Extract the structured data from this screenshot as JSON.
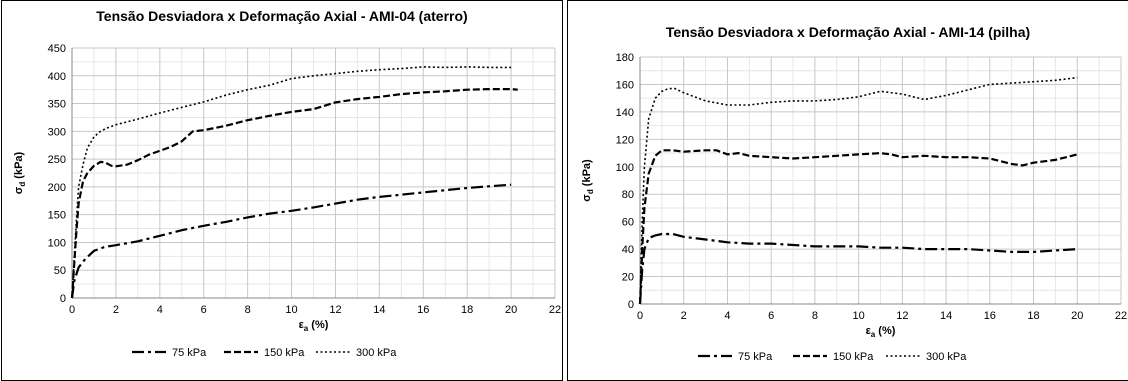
{
  "chart_data": [
    {
      "type": "line",
      "title": "Tensão Desviadora x Deformação Axial - AMI-04 (aterro)",
      "xlabel": "εa (%)",
      "ylabel": "σd (kPa)",
      "xlim": [
        0,
        22
      ],
      "ylim": [
        0,
        450
      ],
      "xticks": [
        0,
        2,
        4,
        6,
        8,
        10,
        12,
        14,
        16,
        18,
        20,
        22
      ],
      "yticks": [
        0,
        50,
        100,
        150,
        200,
        250,
        300,
        350,
        400,
        450
      ],
      "grid": true,
      "legend_position": "bottom",
      "series": [
        {
          "name": "75 kPa",
          "dash": "dashdot",
          "x": [
            0,
            0.1,
            0.3,
            0.6,
            1.0,
            1.5,
            2,
            3,
            4,
            5,
            6,
            7,
            8,
            9,
            10,
            11,
            12,
            13,
            14,
            15,
            16,
            17,
            18,
            19,
            20
          ],
          "y": [
            0,
            30,
            55,
            70,
            85,
            92,
            95,
            102,
            112,
            122,
            130,
            137,
            145,
            152,
            157,
            163,
            170,
            177,
            182,
            186,
            190,
            194,
            198,
            201,
            204
          ]
        },
        {
          "name": "150 kPa",
          "dash": "dash",
          "x": [
            0,
            0.1,
            0.2,
            0.3,
            0.5,
            0.7,
            1.0,
            1.3,
            1.5,
            1.8,
            2,
            2.5,
            3,
            3.5,
            4,
            4.5,
            5,
            5.5,
            6,
            7,
            8,
            9,
            10,
            11,
            12,
            13,
            14,
            15,
            16,
            17,
            18,
            19,
            20,
            20.3
          ],
          "y": [
            0,
            60,
            120,
            170,
            210,
            225,
            238,
            245,
            244,
            238,
            237,
            240,
            248,
            258,
            265,
            272,
            282,
            300,
            302,
            310,
            320,
            328,
            335,
            340,
            352,
            358,
            362,
            367,
            370,
            372,
            375,
            376,
            376,
            375
          ]
        },
        {
          "name": "300 kPa",
          "dash": "dot",
          "x": [
            0,
            0.1,
            0.2,
            0.3,
            0.5,
            0.7,
            1.0,
            1.3,
            1.6,
            2,
            3,
            4,
            5,
            6,
            7,
            8,
            9,
            10,
            11,
            12,
            13,
            14,
            15,
            16,
            17,
            18,
            19,
            20
          ],
          "y": [
            0,
            70,
            140,
            200,
            240,
            270,
            290,
            300,
            306,
            312,
            322,
            333,
            343,
            353,
            365,
            375,
            383,
            395,
            400,
            404,
            408,
            411,
            413,
            416,
            415,
            416,
            415,
            415
          ]
        }
      ]
    },
    {
      "type": "line",
      "title": "Tensão Desviadora x Deformação Axial - AMI-14 (pilha)",
      "xlabel": "εa (%)",
      "ylabel": "σd (kPa)",
      "xlim": [
        0,
        22
      ],
      "ylim": [
        0,
        180
      ],
      "xticks": [
        0,
        2,
        4,
        6,
        8,
        10,
        12,
        14,
        16,
        18,
        20,
        22
      ],
      "yticks": [
        0,
        20,
        40,
        60,
        80,
        100,
        120,
        140,
        160,
        180
      ],
      "grid": true,
      "legend_position": "bottom",
      "series": [
        {
          "name": "75 kPa",
          "dash": "dashdot",
          "x": [
            0,
            0.1,
            0.2,
            0.4,
            0.7,
            1.0,
            1.5,
            2,
            3,
            4,
            5,
            6,
            7,
            8,
            9,
            10,
            11,
            12,
            13,
            14,
            15,
            16,
            17,
            18,
            19,
            20
          ],
          "y": [
            0,
            25,
            40,
            48,
            50,
            51,
            51,
            49,
            47,
            45,
            44,
            44,
            43,
            42,
            42,
            42,
            41,
            41,
            40,
            40,
            40,
            39,
            38,
            38,
            39,
            40
          ]
        },
        {
          "name": "150 kPa",
          "dash": "dash",
          "x": [
            0,
            0.1,
            0.2,
            0.4,
            0.7,
            1.0,
            1.5,
            2,
            3,
            3.5,
            4,
            4.5,
            5,
            6,
            7,
            8,
            9,
            10,
            11,
            11.5,
            12,
            13,
            14,
            15,
            16,
            17,
            17.5,
            18,
            19,
            20
          ],
          "y": [
            0,
            40,
            70,
            95,
            108,
            112,
            112,
            111,
            112,
            112,
            109,
            110,
            108,
            107,
            106,
            107,
            108,
            109,
            110,
            109,
            107,
            108,
            107,
            107,
            106,
            102,
            101,
            103,
            105,
            109
          ]
        },
        {
          "name": "300 kPa",
          "dash": "dot",
          "x": [
            0,
            0.1,
            0.2,
            0.4,
            0.7,
            1.0,
            1.3,
            1.6,
            2,
            3,
            4,
            5,
            6,
            7,
            8,
            9,
            10,
            11,
            12,
            13,
            14,
            15,
            16,
            17,
            18,
            19,
            20
          ],
          "y": [
            0,
            60,
            100,
            135,
            150,
            155,
            157,
            157,
            154,
            148,
            145,
            145,
            147,
            148,
            148,
            149,
            151,
            155,
            153,
            149,
            152,
            156,
            160,
            161,
            162,
            163,
            165
          ]
        }
      ]
    }
  ]
}
